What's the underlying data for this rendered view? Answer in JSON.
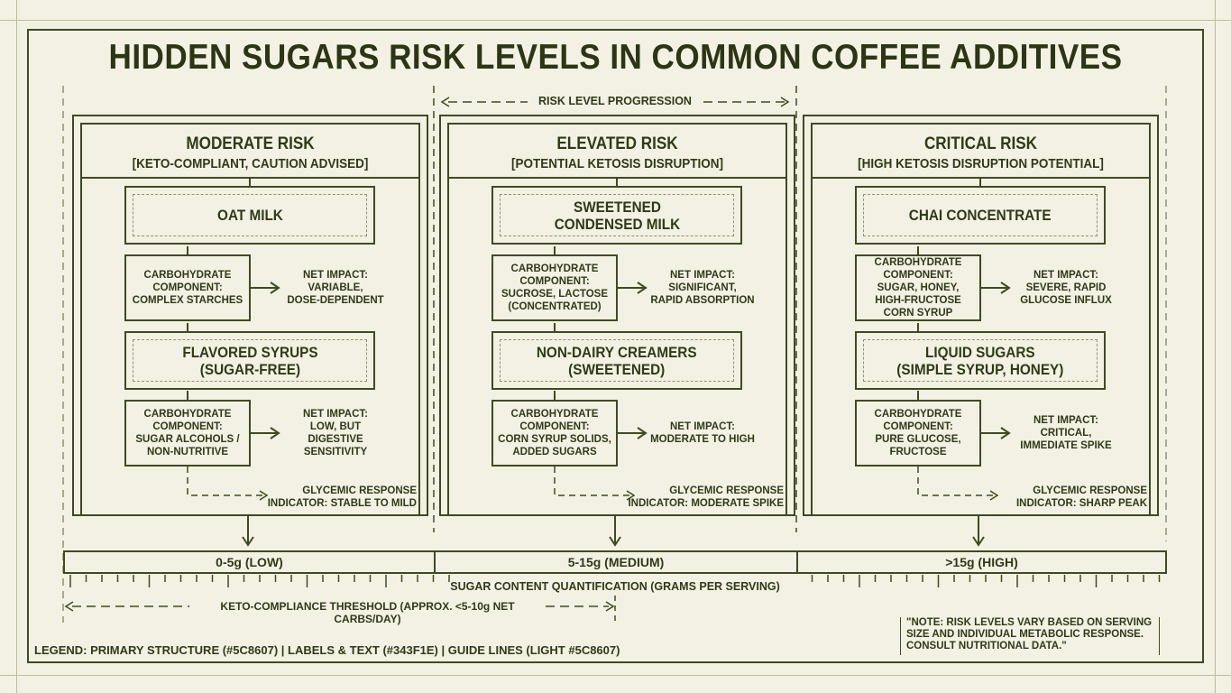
{
  "title": "HIDDEN SUGARS RISK LEVELS IN COMMON COFFEE ADDITIVES",
  "progression_label": "RISK LEVEL PROGRESSION",
  "columns": [
    {
      "title": "MODERATE RISK",
      "subtitle": "[KETO-COMPLIANT, CAUTION ADVISED]",
      "items": [
        {
          "name": "OAT MILK",
          "carb": "CARBOHYDRATE\nCOMPONENT:\nCOMPLEX STARCHES",
          "net": "NET IMPACT:\nVARIABLE,\nDOSE-DEPENDENT"
        },
        {
          "name": "FLAVORED SYRUPS\n(SUGAR-FREE)",
          "carb": "CARBOHYDRATE\nCOMPONENT:\nSUGAR ALCOHOLS /\nNON-NUTRITIVE",
          "net": "NET IMPACT:\nLOW, BUT\nDIGESTIVE\nSENSITIVITY"
        }
      ],
      "glycemic": "GLYCEMIC RESPONSE\nINDICATOR: STABLE TO MILD"
    },
    {
      "title": "ELEVATED RISK",
      "subtitle": "[POTENTIAL KETOSIS DISRUPTION]",
      "items": [
        {
          "name": "SWEETENED\nCONDENSED MILK",
          "carb": "CARBOHYDRATE\nCOMPONENT:\nSUCROSE, LACTOSE\n(CONCENTRATED)",
          "net": "NET IMPACT:\nSIGNIFICANT,\nRAPID ABSORPTION"
        },
        {
          "name": "NON-DAIRY CREAMERS\n(SWEETENED)",
          "carb": "CARBOHYDRATE\nCOMPONENT:\nCORN SYRUP SOLIDS,\nADDED SUGARS",
          "net": "NET IMPACT:\nMODERATE TO HIGH"
        }
      ],
      "glycemic": "GLYCEMIC RESPONSE\nINDICATOR: MODERATE SPIKE"
    },
    {
      "title": "CRITICAL RISK",
      "subtitle": "[HIGH KETOSIS DISRUPTION POTENTIAL]",
      "items": [
        {
          "name": "CHAI CONCENTRATE",
          "carb": "CARBOHYDRATE\nCOMPONENT:\nSUGAR, HONEY,\nHIGH-FRUCTOSE\nCORN SYRUP",
          "net": "NET IMPACT:\nSEVERE, RAPID\nGLUCOSE INFLUX"
        },
        {
          "name": "LIQUID SUGARS\n(SIMPLE SYRUP, HONEY)",
          "carb": "CARBOHYDRATE\nCOMPONENT:\nPURE GLUCOSE,\nFRUCTOSE",
          "net": "NET IMPACT:\nCRITICAL,\nIMMEDIATE SPIKE"
        }
      ],
      "glycemic": "GLYCEMIC RESPONSE\nINDICATOR: SHARP PEAK"
    }
  ],
  "scale": {
    "segments": [
      "0-5g (LOW)",
      "5-15g (MEDIUM)",
      ">15g (HIGH)"
    ],
    "label": "SUGAR CONTENT QUANTIFICATION (GRAMS PER SERVING)"
  },
  "keto_threshold": "KETO-COMPLIANCE THRESHOLD (APPROX. <5-10g NET CARBS/DAY)",
  "legend": "LEGEND: PRIMARY STRUCTURE (#5C8607) | LABELS & TEXT (#343F1E) | GUIDE LINES (LIGHT #5C8607)",
  "note": "\"NOTE: RISK LEVELS VARY BASED ON SERVING SIZE AND INDIVIDUAL METABOLIC RESPONSE. CONSULT NUTRITIONAL DATA.\"",
  "colors": {
    "primary": "#3f4a22",
    "text": "#2f3a18",
    "background": "#f3f1e4"
  }
}
